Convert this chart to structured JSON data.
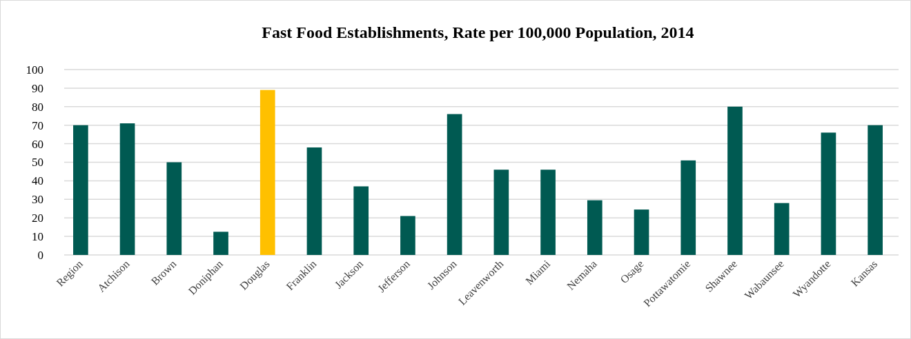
{
  "chart_data": {
    "type": "bar",
    "title": "Fast Food Establishments, Rate per 100,000 Population, 2014",
    "categories": [
      "Region",
      "Atchison",
      "Brown",
      "Doniphan",
      "Douglas",
      "Franklin",
      "Jackson",
      "Jefferson",
      "Johnson",
      "Leavenworth",
      "Miami",
      "Nemaha",
      "Osage",
      "Pottawatomie",
      "Shawnee",
      "Wabaunsee",
      "Wyandotte",
      "Kansas"
    ],
    "values": [
      70,
      71,
      50,
      12.5,
      89,
      58,
      37,
      21,
      76,
      46,
      46,
      29.5,
      24.5,
      51,
      80,
      28,
      66,
      70
    ],
    "colors": [
      "#005a52",
      "#005a52",
      "#005a52",
      "#005a52",
      "#ffc000",
      "#005a52",
      "#005a52",
      "#005a52",
      "#005a52",
      "#005a52",
      "#005a52",
      "#005a52",
      "#005a52",
      "#005a52",
      "#005a52",
      "#005a52",
      "#005a52",
      "#005a52"
    ],
    "ylim": [
      0,
      100
    ],
    "yticks": [
      0,
      10,
      20,
      30,
      40,
      50,
      60,
      70,
      80,
      90,
      100
    ],
    "grid": "y"
  }
}
